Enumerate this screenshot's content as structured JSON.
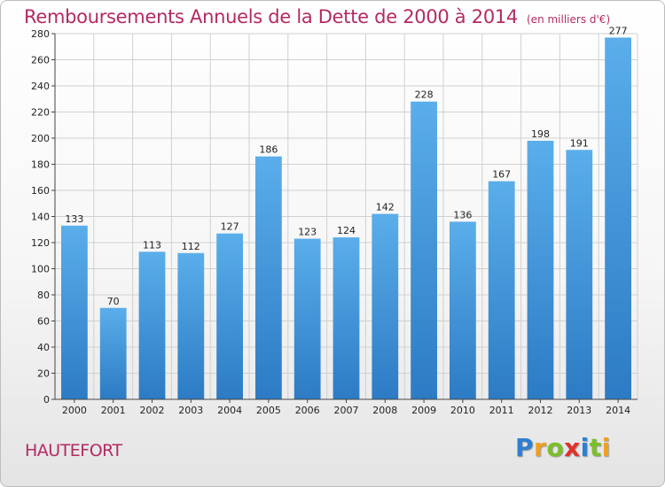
{
  "header": {
    "title": "Remboursements Annuels de la Dette de 2000 à 2014",
    "unit": "(en milliers d'€)"
  },
  "footer": {
    "place": "HAUTEFORT",
    "brand_letters": [
      {
        "ch": "P",
        "color": "#2e7fd2"
      },
      {
        "ch": "r",
        "color": "#f0a020"
      },
      {
        "ch": "o",
        "color": "#7bbf2a"
      },
      {
        "ch": "x",
        "color": "#e0312b"
      },
      {
        "ch": "i",
        "color": "#2e7fd2"
      },
      {
        "ch": "t",
        "color": "#7bbf2a"
      },
      {
        "ch": "i",
        "color": "#f0a020"
      }
    ]
  },
  "chart_data": {
    "type": "bar",
    "categories": [
      "2000",
      "2001",
      "2002",
      "2003",
      "2004",
      "2005",
      "2006",
      "2007",
      "2008",
      "2009",
      "2010",
      "2011",
      "2012",
      "2013",
      "2014"
    ],
    "values": [
      133,
      70,
      113,
      112,
      127,
      186,
      123,
      124,
      142,
      228,
      136,
      167,
      198,
      191,
      277
    ],
    "title": "Remboursements Annuels de la Dette de 2000 à 2014",
    "subtitle": "(en milliers d'€)",
    "ylim": [
      0,
      280
    ],
    "yticks": [
      0,
      20,
      40,
      60,
      80,
      100,
      120,
      140,
      160,
      180,
      200,
      220,
      240,
      260,
      280
    ],
    "grid": true,
    "data_labels": true,
    "bar_color": "#4a9fe0"
  }
}
